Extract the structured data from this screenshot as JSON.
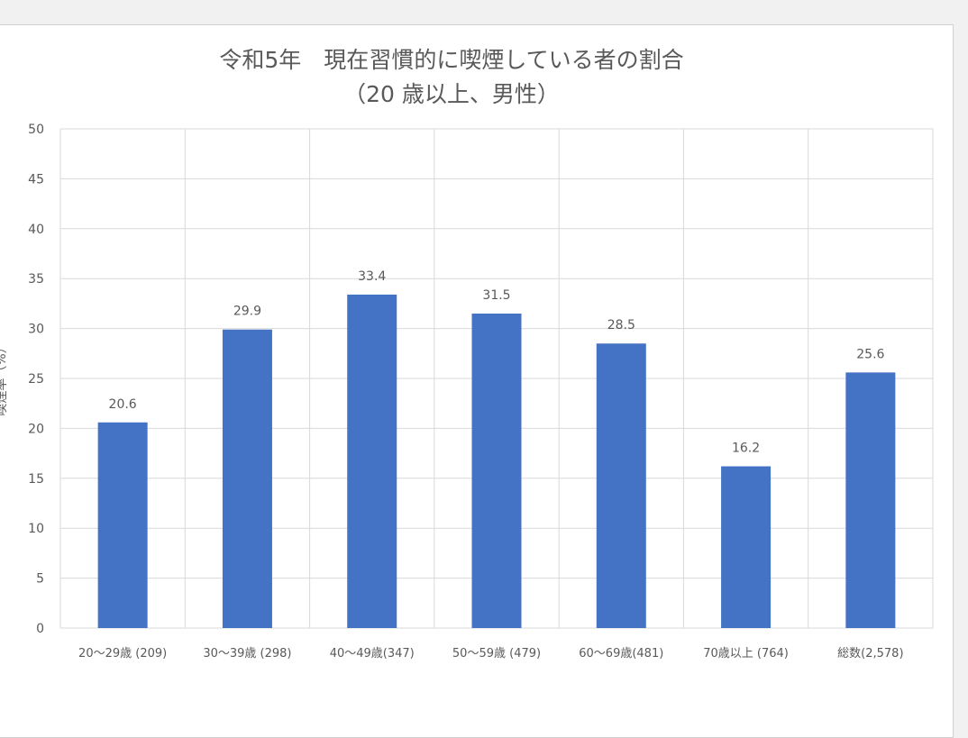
{
  "chart_data": {
    "type": "bar",
    "title_line1": "令和5年　現在習慣的に喫煙している者の割合",
    "title_line2": "（20 歳以上、男性）",
    "xlabel": "",
    "ylabel": "喫煙率（%）",
    "ylim": [
      0,
      50
    ],
    "yticks": [
      0,
      5,
      10,
      15,
      20,
      25,
      30,
      35,
      40,
      45,
      50
    ],
    "grid": true,
    "categories": [
      "20～29歳 (209)",
      "30～39歳 (298)",
      "40～49歳(347)",
      "50～59歳 (479)",
      "60～69歳(481)",
      "70歳以上 (764)",
      "総数(2,578)"
    ],
    "series": [
      {
        "values": [
          20.6,
          29.9,
          33.4,
          31.5,
          28.5,
          16.2,
          25.6
        ],
        "labels": [
          "20.6",
          "29.9",
          "33.4",
          "31.5",
          "28.5",
          "16.2",
          "25.6"
        ],
        "color": "#4472c4"
      }
    ],
    "gridColor": "#d9d9d9",
    "textColor": "#595959"
  }
}
